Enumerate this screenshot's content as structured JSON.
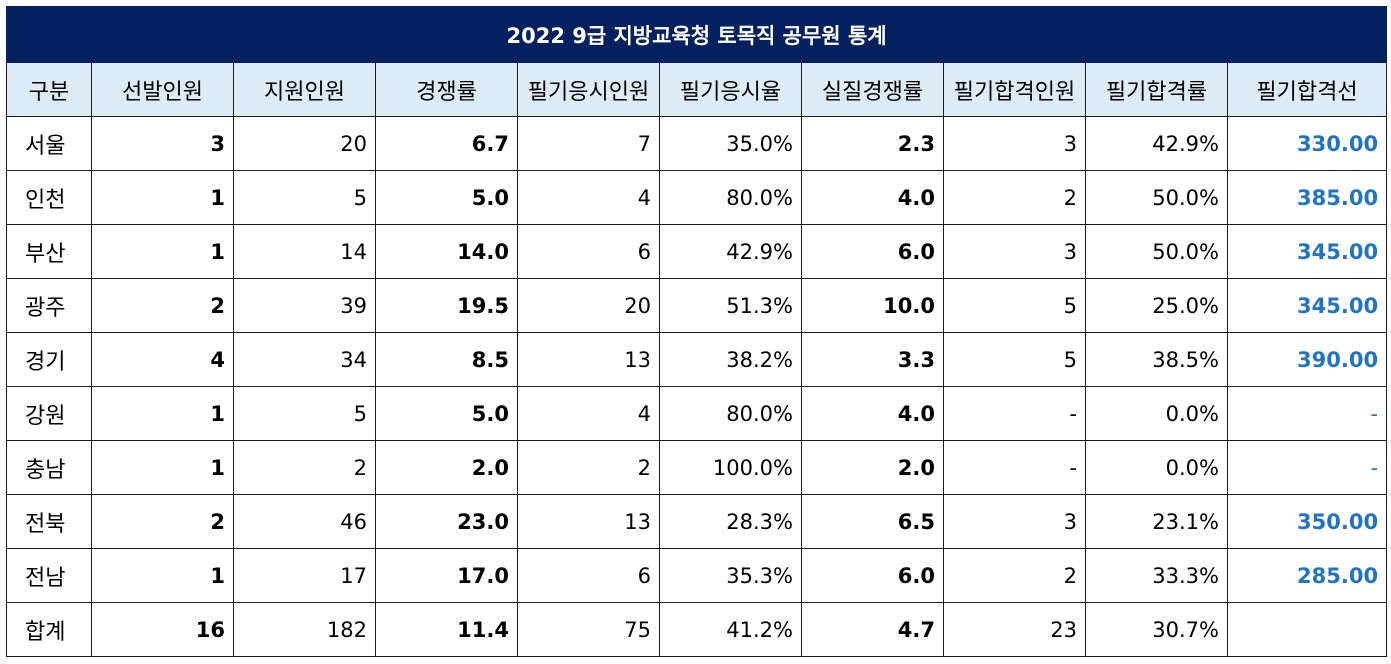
{
  "title": "2022 9급 지방교육청 토목직 공무원 통계",
  "headers": [
    "구분",
    "선발인원",
    "지원인원",
    "경쟁률",
    "필기응시인원",
    "필기응시율",
    "실질경쟁률",
    "필기합격인원",
    "필기합격률",
    "필기합격선"
  ],
  "rows": [
    {
      "region": "서울",
      "selected": "3",
      "applicants": "20",
      "ratio": "6.7",
      "takers": "7",
      "take_rate": "35.0%",
      "real_ratio": "2.3",
      "passed": "3",
      "pass_rate": "42.9%",
      "cutoff": "330.00"
    },
    {
      "region": "인천",
      "selected": "1",
      "applicants": "5",
      "ratio": "5.0",
      "takers": "4",
      "take_rate": "80.0%",
      "real_ratio": "4.0",
      "passed": "2",
      "pass_rate": "50.0%",
      "cutoff": "385.00"
    },
    {
      "region": "부산",
      "selected": "1",
      "applicants": "14",
      "ratio": "14.0",
      "takers": "6",
      "take_rate": "42.9%",
      "real_ratio": "6.0",
      "passed": "3",
      "pass_rate": "50.0%",
      "cutoff": "345.00"
    },
    {
      "region": "광주",
      "selected": "2",
      "applicants": "39",
      "ratio": "19.5",
      "takers": "20",
      "take_rate": "51.3%",
      "real_ratio": "10.0",
      "passed": "5",
      "pass_rate": "25.0%",
      "cutoff": "345.00"
    },
    {
      "region": "경기",
      "selected": "4",
      "applicants": "34",
      "ratio": "8.5",
      "takers": "13",
      "take_rate": "38.2%",
      "real_ratio": "3.3",
      "passed": "5",
      "pass_rate": "38.5%",
      "cutoff": "390.00"
    },
    {
      "region": "강원",
      "selected": "1",
      "applicants": "5",
      "ratio": "5.0",
      "takers": "4",
      "take_rate": "80.0%",
      "real_ratio": "4.0",
      "passed": "-",
      "pass_rate": "0.0%",
      "cutoff": "-"
    },
    {
      "region": "충남",
      "selected": "1",
      "applicants": "2",
      "ratio": "2.0",
      "takers": "2",
      "take_rate": "100.0%",
      "real_ratio": "2.0",
      "passed": "-",
      "pass_rate": "0.0%",
      "cutoff": "-"
    },
    {
      "region": "전북",
      "selected": "2",
      "applicants": "46",
      "ratio": "23.0",
      "takers": "13",
      "take_rate": "28.3%",
      "real_ratio": "6.5",
      "passed": "3",
      "pass_rate": "23.1%",
      "cutoff": "350.00"
    },
    {
      "region": "전남",
      "selected": "1",
      "applicants": "17",
      "ratio": "17.0",
      "takers": "6",
      "take_rate": "35.3%",
      "real_ratio": "6.0",
      "passed": "2",
      "pass_rate": "33.3%",
      "cutoff": "285.00"
    },
    {
      "region": "합계",
      "selected": "16",
      "applicants": "182",
      "ratio": "11.4",
      "takers": "75",
      "take_rate": "41.2%",
      "real_ratio": "4.7",
      "passed": "23",
      "pass_rate": "30.7%",
      "cutoff": ""
    }
  ],
  "colors": {
    "title_bg": "#062160",
    "title_text": "#ffffff",
    "header_bg": "#ddebf7",
    "cutoff_text": "#1f75c4"
  }
}
